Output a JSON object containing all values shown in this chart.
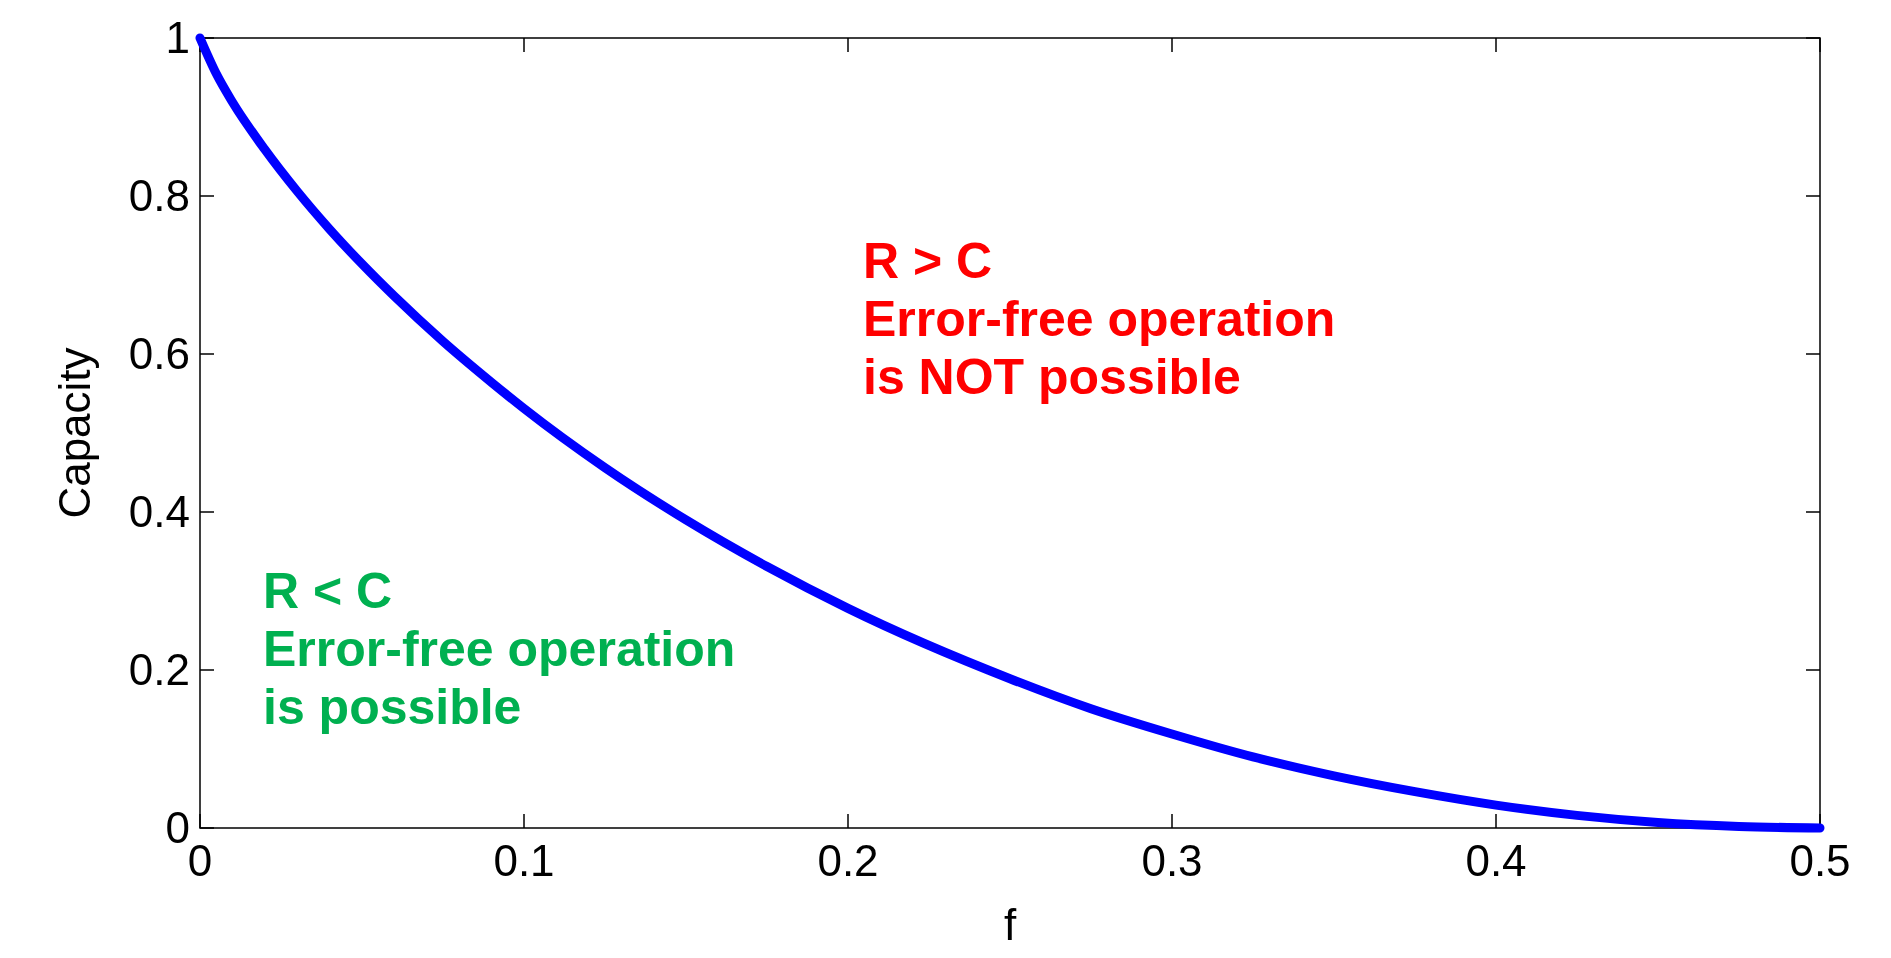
{
  "chart_data": {
    "type": "line",
    "xlabel": "f",
    "ylabel": "Capacity",
    "x": [
      0,
      0.005,
      0.01,
      0.02,
      0.03,
      0.04,
      0.05,
      0.06,
      0.075,
      0.09,
      0.1,
      0.125,
      0.15,
      0.175,
      0.2,
      0.25,
      0.275,
      0.3,
      0.325,
      0.35,
      0.375,
      0.4,
      0.425,
      0.45,
      0.475,
      0.5
    ],
    "series": [
      {
        "color": "#0000ff",
        "values": [
          1,
          0.955,
          0.919,
          0.859,
          0.806,
          0.758,
          0.714,
          0.673,
          0.616,
          0.564,
          0.531,
          0.456,
          0.39,
          0.331,
          0.278,
          0.189,
          0.151,
          0.119,
          0.09,
          0.066,
          0.046,
          0.029,
          0.016,
          0.007,
          0.002,
          0
        ]
      }
    ],
    "xlim": [
      0,
      0.5
    ],
    "ylim": [
      0,
      1
    ],
    "xticks": [
      0,
      0.1,
      0.2,
      0.3,
      0.4,
      0.5
    ],
    "yticks": [
      0,
      0.2,
      0.4,
      0.6,
      0.8,
      1
    ],
    "line_style": "solid",
    "annotations": [
      "R > C\nError-free operation\nis NOT possible",
      "R < C\nError-free operation\nis possible"
    ]
  }
}
